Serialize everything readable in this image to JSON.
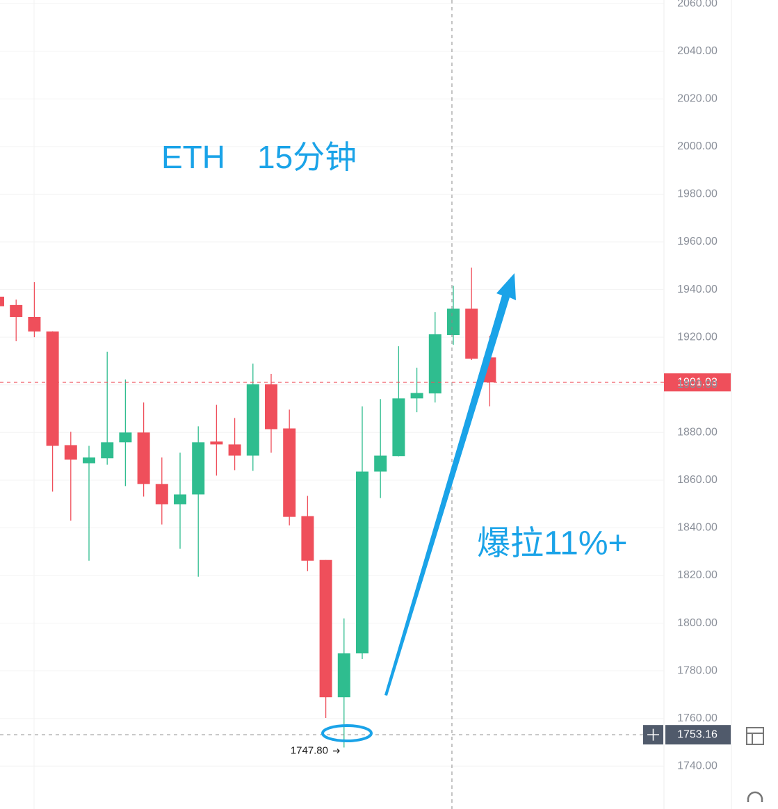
{
  "chart_data": {
    "type": "candlestick",
    "open": [
      1937,
      1933.5,
      1928.5,
      1922.4,
      1874.7,
      1867.1,
      1869.2,
      1875.9,
      1880,
      1858.4,
      1849.9,
      1854,
      1876.2,
      1875,
      1870.3,
      1900.2,
      1881.7,
      1844.9,
      1826.5,
      1768.9,
      1787.3,
      1863.6,
      1870.1,
      1894.3,
      1896.4,
      1920.9,
      1932,
      1911.5
    ],
    "high": [
      1938,
      1935.8,
      1943.1,
      1922.5,
      1880.3,
      1874.4,
      1913.9,
      1902.2,
      1892.6,
      1869.5,
      1871.5,
      1882.6,
      1891.6,
      1886.1,
      1908.9,
      1904.6,
      1889.6,
      1853.4,
      1826.5,
      1802,
      1891,
      1894,
      1916.2,
      1907.2,
      1930.5,
      1941.6,
      1949.2,
      1920.6
    ],
    "low": [
      1932,
      1918.3,
      1920,
      1855.2,
      1843,
      1826.2,
      1866.5,
      1857.5,
      1853.1,
      1841.4,
      1831.2,
      1819.5,
      1861.9,
      1864.2,
      1863.9,
      1871.5,
      1841,
      1821.8,
      1760.2,
      1747.8,
      1785,
      1852.5,
      1870,
      1888.5,
      1892.6,
      1916.8,
      1910.4,
      1891
    ],
    "close": [
      1933,
      1928.5,
      1922.4,
      1874.4,
      1868.6,
      1869.5,
      1875.9,
      1880,
      1858.4,
      1849.9,
      1854,
      1875.9,
      1875,
      1870.3,
      1900.2,
      1881.4,
      1844.6,
      1826.2,
      1768.9,
      1787.3,
      1863.6,
      1870.3,
      1894.3,
      1896.6,
      1921.2,
      1932,
      1911,
      1901.03
    ],
    "up_color": "#2fbd8f",
    "down_color": "#ef4f5b",
    "ylim": [
      1722,
      2061.5
    ],
    "yticks": [
      {
        "value": 1740,
        "label": "1740.00"
      },
      {
        "value": 1760,
        "label": "1760.00"
      },
      {
        "value": 1780,
        "label": "1780.00"
      },
      {
        "value": 1800,
        "label": "1800.00"
      },
      {
        "value": 1820,
        "label": "1820.00"
      },
      {
        "value": 1840,
        "label": "1840.00"
      },
      {
        "value": 1860,
        "label": "1860.00"
      },
      {
        "value": 1880,
        "label": "1880.00"
      },
      {
        "value": 1900,
        "label": "1900.00"
      },
      {
        "value": 1920,
        "label": "1920.00"
      },
      {
        "value": 1940,
        "label": "1940.00"
      },
      {
        "value": 1960,
        "label": "1960.00"
      },
      {
        "value": 1980,
        "label": "1980.00"
      },
      {
        "value": 2000,
        "label": "2000.00"
      },
      {
        "value": 2020,
        "label": "2020.00"
      },
      {
        "value": 2040,
        "label": "2040.00"
      },
      {
        "value": 2060,
        "label": "2060.00"
      }
    ],
    "grid": true,
    "last_price": {
      "value": 1901.03,
      "label": "1901.03"
    },
    "crosshair_price": {
      "value": 1753.16,
      "label": "1753.16"
    },
    "low_marker": {
      "value": 1747.8,
      "label": "1747.80"
    },
    "annotations": [
      "ETH　15分钟",
      "爆拉11%+"
    ]
  }
}
